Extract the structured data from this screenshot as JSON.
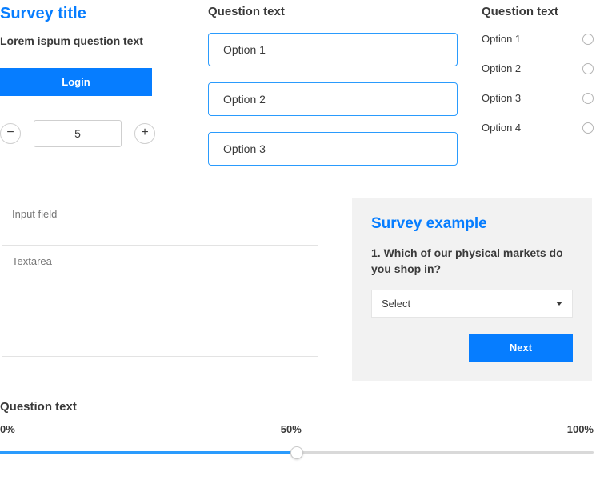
{
  "colors": {
    "accent": "#067dff",
    "option_border": "#2a9bfd",
    "text": "#3a3a3a",
    "muted": "#b0b0b0",
    "panel_bg": "#f2f2f2",
    "bg": "#ffffff"
  },
  "left": {
    "title": "Survey title",
    "subtext": "Lorem ispum question text",
    "login_label": "Login",
    "stepper_value": "5"
  },
  "options_block": {
    "heading": "Question text",
    "items": [
      "Option 1",
      "Option 2",
      "Option 3"
    ]
  },
  "radio_block": {
    "heading": "Question text",
    "items": [
      "Option 1",
      "Option 2",
      "Option 3",
      "Option 4"
    ]
  },
  "inputs": {
    "field_placeholder": "Input field",
    "textarea_placeholder": "Textarea"
  },
  "survey_card": {
    "title": "Survey example",
    "question_number": "1.",
    "question_text": "Which of our physical markets do you shop in?",
    "select_label": "Select",
    "next_label": "Next"
  },
  "slider": {
    "heading": "Question text",
    "min_label": "0%",
    "mid_label": "50%",
    "max_label": "100%",
    "value_percent": 50
  }
}
